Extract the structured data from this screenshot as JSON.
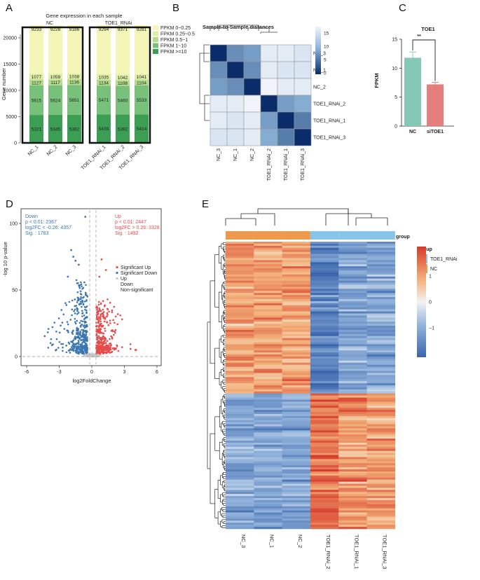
{
  "panels": {
    "a": "A",
    "b": "B",
    "c": "C",
    "d": "D",
    "e": "E"
  },
  "panelA": {
    "title": "Gene expression in each sample",
    "ylabel": "Gene number",
    "yticks": [
      0,
      5000,
      10000,
      15000,
      20000
    ],
    "groups": [
      {
        "name": "NC",
        "samples": [
          "NC_1",
          "NC_2",
          "NC_3"
        ]
      },
      {
        "name": "TOE1_RNAi",
        "samples": [
          "TOE1_RNAi_1",
          "TOE1_RNAi_2",
          "TOE1_RNAi_3"
        ]
      }
    ],
    "legend": [
      "FPKM 0~0.25",
      "FPKM 0.25~0.5",
      "FPKM 0.5~1",
      "FPKM 1~10",
      "FPKM >=10"
    ],
    "colors": [
      "#f3f6b6",
      "#dfeea5",
      "#b3dc8c",
      "#78c17a",
      "#3c9e54"
    ],
    "segments_bottom_up": [
      [
        5321,
        5615,
        1127,
        1077,
        9233
      ],
      [
        5345,
        5624,
        1117,
        1059,
        9228
      ],
      [
        5362,
        5651,
        1136,
        1038,
        9186
      ],
      [
        5439,
        5471,
        1134,
        1035,
        9294
      ],
      [
        5392,
        5460,
        1108,
        1042,
        9371
      ],
      [
        5414,
        5533,
        1104,
        1041,
        9281
      ]
    ]
  },
  "panelB": {
    "title": "Sample-to-Sample distances",
    "row_labels": [
      "NC_3",
      "NC_1",
      "NC_2",
      "TOE1_RNAi_2",
      "TOE1_RNAi_1",
      "TOE1_RNAi_3"
    ],
    "col_labels": [
      "NC_3",
      "NC_1",
      "NC_2",
      "TOE1_RNAi_2",
      "TOE1_RNAi_1",
      "TOE1_RNAi_3"
    ],
    "scale_ticks": [
      "15",
      "10",
      "5",
      "0"
    ],
    "matrix": [
      [
        0,
        6,
        7,
        16,
        16,
        15
      ],
      [
        6,
        0,
        6,
        16,
        15,
        15
      ],
      [
        7,
        6,
        0,
        17,
        16,
        16
      ],
      [
        16,
        16,
        17,
        0,
        7,
        8
      ],
      [
        16,
        15,
        16,
        7,
        0,
        5
      ],
      [
        15,
        15,
        16,
        8,
        5,
        0
      ]
    ]
  },
  "panelC": {
    "title": "TOE1",
    "ylabel": "FPKM",
    "categories": [
      "NC",
      "siTOE1"
    ],
    "values": [
      11.8,
      7.2
    ],
    "errors": [
      1.0,
      0.35
    ],
    "colors": [
      "#86c8b6",
      "#e47f7e"
    ],
    "yticks": [
      0,
      5,
      10,
      15
    ],
    "ylim": [
      0,
      15
    ],
    "significance": "**"
  },
  "panelD": {
    "type": "scatter",
    "ylabel": "-log 10 p-value",
    "xlabel": "log2FoldChange",
    "xticks": [
      -6,
      -3,
      0,
      3,
      6
    ],
    "yticks": [
      0,
      50,
      100
    ],
    "down_text": [
      "Down",
      "p < 0.01: 2367",
      "log2FC < -0.26: 4357",
      "Sig. : 1783"
    ],
    "up_text": [
      "Up",
      "p < 0.01: 2447",
      "log2FC > 0.26: 3328",
      "Sig. : 1492"
    ],
    "legend": [
      "Significant Up",
      "Significant Down",
      "Up",
      "Down",
      "Non-significant"
    ],
    "colors": {
      "up": "#e64b4b",
      "down": "#3b76b0",
      "ns": "#c8c8c8"
    }
  },
  "panelE": {
    "type": "heatmap",
    "columns": [
      "NC_3",
      "NC_1",
      "NC_2",
      "TOE1_RNAi_2",
      "TOE1_RNAi_1",
      "TOE1_RNAi_3"
    ],
    "group_label": "group",
    "legend_title": "group",
    "legend_items": [
      "TOE1_RNAi",
      "NC"
    ],
    "group_colors": {
      "TOE1_RNAi": "#86c5e8",
      "NC": "#ee9a4c"
    },
    "scale_ticks": [
      "1",
      "0",
      "−1"
    ]
  },
  "chart_data": [
    {
      "type": "bar",
      "title": "Gene expression in each sample",
      "ylabel": "Gene number",
      "categories": [
        "NC_1",
        "NC_2",
        "NC_3",
        "TOE1_RNAi_1",
        "TOE1_RNAi_2",
        "TOE1_RNAi_3"
      ],
      "series": [
        {
          "name": "FPKM >=10",
          "values": [
            5321,
            5345,
            5362,
            5439,
            5392,
            5414
          ]
        },
        {
          "name": "FPKM 1~10",
          "values": [
            5615,
            5624,
            5651,
            5471,
            5460,
            5533
          ]
        },
        {
          "name": "FPKM 0.5~1",
          "values": [
            1127,
            1117,
            1136,
            1134,
            1108,
            1104
          ]
        },
        {
          "name": "FPKM 0.25~0.5",
          "values": [
            1077,
            1059,
            1038,
            1035,
            1042,
            1041
          ]
        },
        {
          "name": "FPKM 0~0.25",
          "values": [
            9233,
            9228,
            9186,
            9294,
            9371,
            9281
          ]
        }
      ],
      "ylim": [
        0,
        22500
      ]
    },
    {
      "type": "heatmap",
      "title": "Sample-to-Sample distances",
      "categories": [
        "NC_3",
        "NC_1",
        "NC_2",
        "TOE1_RNAi_2",
        "TOE1_RNAi_1",
        "TOE1_RNAi_3"
      ]
    },
    {
      "type": "bar",
      "title": "TOE1",
      "ylabel": "FPKM",
      "categories": [
        "NC",
        "siTOE1"
      ],
      "values": [
        11.8,
        7.2
      ],
      "ylim": [
        0,
        15
      ]
    },
    {
      "type": "scatter",
      "xlabel": "log2FoldChange",
      "ylabel": "-log 10 p-value",
      "xlim": [
        -6.5,
        6.5
      ],
      "ylim": [
        -5,
        115
      ]
    },
    {
      "type": "heatmap",
      "categories": [
        "NC_3",
        "NC_1",
        "NC_2",
        "TOE1_RNAi_2",
        "TOE1_RNAi_1",
        "TOE1_RNAi_3"
      ]
    }
  ]
}
